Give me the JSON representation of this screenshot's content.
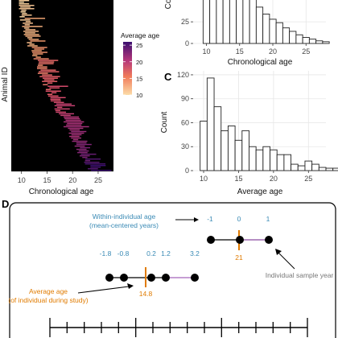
{
  "colors": {
    "heat_low": "#fcd9a8",
    "heat_mid": "#e8556b",
    "heat_high": "#3b0f70",
    "blue_text": "#3a8ab5",
    "orange": "#e07b00",
    "purple_line": "#b47fc6",
    "grey_text": "#777777"
  },
  "chart_data": [
    {
      "panel_label": "",
      "type": "heatmap",
      "xlabel": "Chronological age",
      "ylabel": "Animal ID",
      "x_ticks": [
        "10",
        "15",
        "20",
        "25"
      ],
      "xlim": [
        8,
        28
      ],
      "legend": {
        "title": "Average age",
        "ticks": [
          "25",
          "20",
          "15",
          "10"
        ],
        "range": [
          10,
          26
        ],
        "position": "right"
      }
    },
    {
      "panel_label": "",
      "type": "bar",
      "xlabel": "Chronological age",
      "ylabel": "Count",
      "ylabel_visible": "Co",
      "x_ticks": [
        "10",
        "15",
        "20",
        "25"
      ],
      "y_ticks_visible": [
        "25",
        "0"
      ],
      "xlim": [
        8,
        28
      ],
      "ylim": [
        0,
        120
      ],
      "bins_start": 9.5,
      "bin_width": 1,
      "values": [
        120,
        108,
        92,
        78,
        72,
        66,
        60,
        56,
        42,
        34,
        28,
        24,
        18,
        14,
        10,
        7,
        5,
        3,
        2
      ]
    },
    {
      "panel_label": "C",
      "type": "bar",
      "xlabel": "Average age",
      "ylabel": "Count",
      "x_ticks": [
        "10",
        "15",
        "20",
        "25"
      ],
      "y_ticks": [
        "0",
        "30",
        "60",
        "90",
        "120"
      ],
      "xlim": [
        8.5,
        27.5
      ],
      "ylim": [
        0,
        125
      ],
      "bins_start": 9.5,
      "bin_width": 1,
      "values": [
        62,
        116,
        80,
        50,
        56,
        38,
        50,
        30,
        26,
        30,
        26,
        20,
        20,
        8,
        6,
        12,
        8,
        4,
        3,
        3,
        2,
        3,
        4,
        2,
        2,
        0,
        0,
        12
      ]
    }
  ],
  "panel_d": {
    "label": "D",
    "within_label_line1": "Within-individual age",
    "within_label_line2": "(mean-centered years)",
    "upper_values": [
      "-1",
      "0",
      "1"
    ],
    "upper_mean": "21",
    "lower_values": [
      "-1.8",
      "-0.8",
      "0.2",
      "1.2",
      "3.2"
    ],
    "lower_mean": "14.8",
    "average_label_line1": "Average age",
    "average_label_line2": "(of individual during study)",
    "sample_label": "Individual sample year"
  }
}
